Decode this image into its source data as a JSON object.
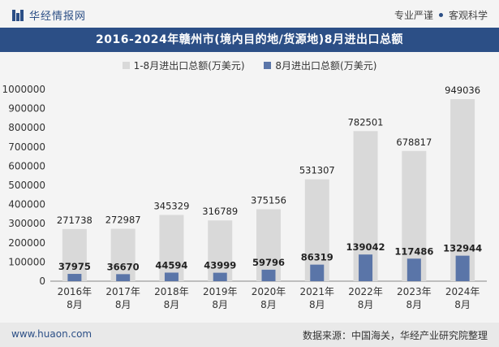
{
  "header": {
    "brand": "华经情报网",
    "slogan_left": "专业严谨",
    "slogan_right": "客观科学"
  },
  "chart_data": {
    "type": "bar",
    "title": "2016-2024年赣州市(境内目的地/货源地)8月进出口总额",
    "categories": [
      [
        "2016年",
        "8月"
      ],
      [
        "2017年",
        "8月"
      ],
      [
        "2018年",
        "8月"
      ],
      [
        "2019年",
        "8月"
      ],
      [
        "2020年",
        "8月"
      ],
      [
        "2021年",
        "8月"
      ],
      [
        "2022年",
        "8月"
      ],
      [
        "2023年",
        "8月"
      ],
      [
        "2024年",
        "8月"
      ]
    ],
    "series": [
      {
        "name": "1-8月进出口总额(万美元)",
        "color": "#d9d9d9",
        "values": [
          271738,
          272987,
          345329,
          316789,
          375156,
          531307,
          782501,
          678817,
          949036
        ]
      },
      {
        "name": "8月进出口总额(万美元)",
        "color": "#5a75a8",
        "values": [
          37975,
          36670,
          44594,
          43999,
          59796,
          86319,
          139042,
          117486,
          132944
        ]
      }
    ],
    "ylim": [
      0,
      1000000
    ],
    "yticks": [
      0,
      100000,
      200000,
      300000,
      400000,
      500000,
      600000,
      700000,
      800000,
      900000,
      1000000
    ],
    "grid": false,
    "legend_position": "top"
  },
  "footer": {
    "website": "www.huaon.com",
    "source": "数据来源：中国海关，华经产业研究院整理"
  }
}
